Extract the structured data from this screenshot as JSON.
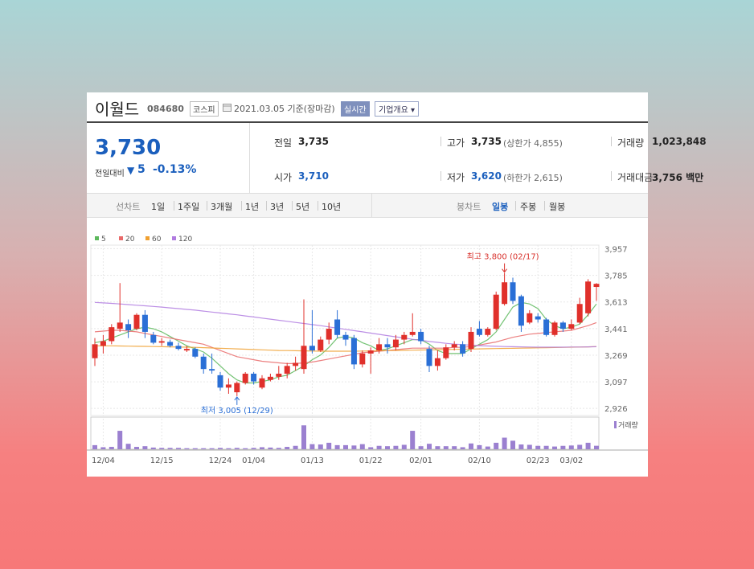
{
  "header": {
    "name": "이월드",
    "code": "084680",
    "market": "코스피",
    "date": "2021.03.05 기준(장마감)",
    "badge": "실시간",
    "button": "기업개요"
  },
  "price": {
    "current": "3,730",
    "change_label": "전일대비",
    "change": "5",
    "change_pct": "-0.13%"
  },
  "quote": {
    "rows": [
      [
        {
          "label": "전일",
          "value": "3,735"
        },
        {
          "label": "고가",
          "value": "3,735",
          "note": "(상한가 4,855)"
        },
        {
          "label": "거래량",
          "value": "1,023,848"
        }
      ],
      [
        {
          "label": "시가",
          "value": "3,710"
        },
        {
          "label": "저가",
          "value": "3,620",
          "note": "(하한가 2,615)"
        },
        {
          "label": "거래대금",
          "value": "3,756 백만"
        }
      ]
    ]
  },
  "tabs": {
    "line_label": "선차트",
    "line_tabs": [
      "1일",
      "1주일",
      "3개월",
      "1년",
      "3년",
      "5년",
      "10년"
    ],
    "candle_label": "봉차트",
    "candle_tabs": [
      "일봉",
      "주봉",
      "월봉"
    ]
  },
  "chart_data": {
    "type": "candlestick",
    "categories": [
      null,
      "12/04",
      null,
      null,
      null,
      null,
      null,
      null,
      "12/15",
      null,
      null,
      null,
      null,
      null,
      null,
      "12/24",
      null,
      null,
      null,
      "01/04",
      null,
      null,
      null,
      null,
      null,
      null,
      "01/13",
      null,
      null,
      null,
      null,
      null,
      null,
      "01/22",
      null,
      null,
      null,
      null,
      null,
      "02/01",
      null,
      null,
      null,
      null,
      null,
      null,
      "02/10",
      null,
      null,
      null,
      null,
      null,
      null,
      "02/23",
      null,
      null,
      null,
      "03/02",
      null,
      null,
      null
    ],
    "open": [
      3250,
      3330,
      3360,
      3440,
      3470,
      3440,
      3530,
      3400,
      3350,
      3355,
      3330,
      3300,
      3310,
      3260,
      3180,
      3140,
      3060,
      3030,
      3090,
      3150,
      3060,
      3110,
      3130,
      3150,
      3200,
      3180,
      3330,
      3300,
      3370,
      3500,
      3400,
      3380,
      3210,
      3280,
      3300,
      3340,
      3320,
      3370,
      3400,
      3420,
      3310,
      3200,
      3250,
      3320,
      3340,
      3310,
      3440,
      3400,
      3440,
      3600,
      3740,
      3650,
      3480,
      3520,
      3500,
      3400,
      3480,
      3440,
      3480,
      3540,
      3710
    ],
    "high": [
      3380,
      3400,
      3470,
      3735,
      3500,
      3540,
      3560,
      3420,
      3380,
      3370,
      3350,
      3330,
      3320,
      3280,
      3280,
      3160,
      3120,
      3100,
      3160,
      3160,
      3140,
      3150,
      3200,
      3220,
      3260,
      3630,
      3560,
      3390,
      3480,
      3560,
      3420,
      3400,
      3300,
      3320,
      3380,
      3380,
      3400,
      3420,
      3540,
      3440,
      3330,
      3300,
      3340,
      3360,
      3360,
      3450,
      3490,
      3450,
      3680,
      3800,
      3770,
      3660,
      3560,
      3540,
      3510,
      3490,
      3490,
      3500,
      3640,
      3760,
      3735
    ],
    "low": [
      3200,
      3280,
      3340,
      3420,
      3380,
      3430,
      3380,
      3340,
      3330,
      3320,
      3300,
      3290,
      3250,
      3150,
      3150,
      3040,
      3020,
      3005,
      3080,
      3080,
      3050,
      3100,
      3110,
      3120,
      3170,
      3150,
      3280,
      3290,
      3340,
      3380,
      3330,
      3180,
      3190,
      3150,
      3280,
      3280,
      3300,
      3340,
      3390,
      3340,
      3160,
      3170,
      3240,
      3300,
      3260,
      3290,
      3390,
      3390,
      3430,
      3590,
      3600,
      3420,
      3470,
      3480,
      3390,
      3390,
      3420,
      3430,
      3470,
      3520,
      3620
    ],
    "close": [
      3340,
      3360,
      3450,
      3480,
      3430,
      3530,
      3420,
      3350,
      3360,
      3330,
      3310,
      3310,
      3260,
      3180,
      3170,
      3060,
      3080,
      3090,
      3150,
      3100,
      3120,
      3130,
      3150,
      3200,
      3220,
      3330,
      3300,
      3370,
      3440,
      3400,
      3370,
      3210,
      3280,
      3300,
      3340,
      3320,
      3370,
      3400,
      3420,
      3360,
      3200,
      3250,
      3320,
      3340,
      3280,
      3420,
      3400,
      3440,
      3660,
      3740,
      3620,
      3460,
      3540,
      3500,
      3400,
      3480,
      3440,
      3470,
      3600,
      3745,
      3730
    ],
    "up_color": "#e0302b",
    "down_color": "#2a6fd6",
    "series": [
      {
        "name": "5",
        "color": "#5cb85c",
        "values": [
          3350,
          3360,
          3380,
          3400,
          3420,
          3440,
          3450,
          3440,
          3420,
          3390,
          3360,
          3330,
          3310,
          3290,
          3250,
          3200,
          3150,
          3110,
          3090,
          3090,
          3100,
          3110,
          3130,
          3140,
          3170,
          3200,
          3240,
          3270,
          3320,
          3380,
          3390,
          3380,
          3350,
          3330,
          3300,
          3310,
          3330,
          3350,
          3370,
          3370,
          3340,
          3300,
          3280,
          3280,
          3280,
          3310,
          3340,
          3370,
          3420,
          3500,
          3580,
          3610,
          3600,
          3570,
          3500,
          3460,
          3440,
          3450,
          3470,
          3530,
          3600
        ]
      },
      {
        "name": "20",
        "color": "#e96a6a",
        "values": [
          3420,
          3425,
          3430,
          3430,
          3425,
          3420,
          3410,
          3400,
          3390,
          3380,
          3370,
          3360,
          3350,
          3340,
          3320,
          3300,
          3280,
          3260,
          3250,
          3240,
          3230,
          3225,
          3220,
          3215,
          3215,
          3220,
          3225,
          3235,
          3245,
          3255,
          3265,
          3275,
          3285,
          3290,
          3295,
          3300,
          3305,
          3310,
          3315,
          3315,
          3315,
          3315,
          3315,
          3320,
          3320,
          3325,
          3335,
          3345,
          3355,
          3370,
          3385,
          3395,
          3405,
          3410,
          3415,
          3420,
          3425,
          3430,
          3445,
          3460,
          3480
        ]
      },
      {
        "name": "60",
        "color": "#f0a030",
        "values": [
          3330,
          3330,
          3330,
          3329,
          3328,
          3327,
          3326,
          3325,
          3324,
          3323,
          3322,
          3321,
          3320,
          3318,
          3316,
          3314,
          3312,
          3310,
          3308,
          3306,
          3304,
          3302,
          3300,
          3299,
          3298,
          3297,
          3296,
          3295,
          3295,
          3295,
          3295,
          3295,
          3296,
          3297,
          3298,
          3299,
          3300,
          3301,
          3302,
          3303,
          3304,
          3305,
          3306,
          3307,
          3308,
          3309,
          3310,
          3311,
          3312,
          3313,
          3314,
          3315,
          3316,
          3317,
          3318,
          3319,
          3320,
          3321,
          3322,
          3323,
          3325
        ]
      },
      {
        "name": "120",
        "color": "#b07be0",
        "values": [
          3610,
          3607,
          3604,
          3600,
          3596,
          3592,
          3588,
          3584,
          3580,
          3575,
          3570,
          3565,
          3560,
          3554,
          3548,
          3542,
          3536,
          3530,
          3523,
          3516,
          3509,
          3502,
          3495,
          3488,
          3481,
          3474,
          3467,
          3460,
          3452,
          3444,
          3436,
          3428,
          3420,
          3412,
          3404,
          3396,
          3388,
          3380,
          3372,
          3365,
          3358,
          3352,
          3346,
          3341,
          3337,
          3334,
          3331,
          3329,
          3327,
          3325,
          3324,
          3323,
          3322,
          3321,
          3321,
          3321,
          3321,
          3322,
          3322,
          3323,
          3324
        ]
      }
    ],
    "volume_name": "거래량",
    "volume_color": "#9b80d0",
    "volume": [
      1200000,
      600000,
      700000,
      5400000,
      1600000,
      700000,
      900000,
      500000,
      400000,
      400000,
      400000,
      300000,
      300000,
      300000,
      300000,
      400000,
      300000,
      400000,
      300000,
      400000,
      600000,
      500000,
      400000,
      700000,
      1000000,
      7000000,
      1500000,
      1400000,
      1900000,
      1200000,
      1200000,
      1100000,
      1500000,
      600000,
      1000000,
      900000,
      1000000,
      1300000,
      5400000,
      900000,
      1600000,
      900000,
      900000,
      900000,
      600000,
      1700000,
      1200000,
      800000,
      1900000,
      3400000,
      2500000,
      1400000,
      1300000,
      1000000,
      1000000,
      800000,
      1000000,
      1100000,
      1300000,
      1900000,
      1023848
    ],
    "volume_ylim": [
      0,
      8000000
    ],
    "ylim": [
      2880,
      3980
    ],
    "yticks": [
      {
        "value": 2926,
        "label": "2,926"
      },
      {
        "value": 3097,
        "label": "3,097"
      },
      {
        "value": 3269,
        "label": "3,269"
      },
      {
        "value": 3441,
        "label": "3,441"
      },
      {
        "value": 3613,
        "label": "3,613"
      },
      {
        "value": 3785,
        "label": "3,785"
      },
      {
        "value": 3957,
        "label": "3,957"
      }
    ],
    "grid": true,
    "annotations": {
      "high": "최고 3,800 (02/17)",
      "low": "최저 3,005 (12/29)"
    }
  }
}
